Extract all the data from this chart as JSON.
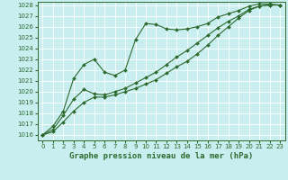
{
  "title": "Graphe pression niveau de la mer (hPa)",
  "bg_color": "#c8eef0",
  "grid_color": "#ffffff",
  "line_color": "#2d6a2d",
  "xlim": [
    -0.5,
    23.5
  ],
  "ylim": [
    1015.5,
    1028.3
  ],
  "yticks": [
    1016,
    1017,
    1018,
    1019,
    1020,
    1021,
    1022,
    1023,
    1024,
    1025,
    1026,
    1027,
    1028
  ],
  "xticks": [
    0,
    1,
    2,
    3,
    4,
    5,
    6,
    7,
    8,
    9,
    10,
    11,
    12,
    13,
    14,
    15,
    16,
    17,
    18,
    19,
    20,
    21,
    22,
    23
  ],
  "line1_x": [
    0,
    1,
    2,
    3,
    4,
    5,
    6,
    7,
    8,
    9,
    10,
    11,
    12,
    13,
    14,
    15,
    16,
    17,
    18,
    19,
    20,
    21,
    22,
    23
  ],
  "line1_y": [
    1016.0,
    1016.8,
    1018.2,
    1021.2,
    1022.5,
    1023.0,
    1021.8,
    1021.5,
    1022.0,
    1024.8,
    1026.3,
    1026.2,
    1025.8,
    1025.7,
    1025.8,
    1026.0,
    1026.3,
    1026.9,
    1027.2,
    1027.5,
    1027.9,
    1028.1,
    1028.1,
    1028.0
  ],
  "line2_x": [
    0,
    1,
    2,
    3,
    4,
    5,
    6,
    7,
    8,
    9,
    10,
    11,
    12,
    13,
    14,
    15,
    16,
    17,
    18,
    19,
    20,
    21,
    22,
    23
  ],
  "line2_y": [
    1016.0,
    1016.5,
    1017.8,
    1019.3,
    1020.2,
    1019.8,
    1019.7,
    1020.0,
    1020.3,
    1020.8,
    1021.3,
    1021.8,
    1022.5,
    1023.2,
    1023.8,
    1024.5,
    1025.2,
    1025.9,
    1026.5,
    1027.0,
    1027.6,
    1027.9,
    1028.0,
    1028.0
  ],
  "line3_x": [
    0,
    1,
    2,
    3,
    4,
    5,
    6,
    7,
    8,
    9,
    10,
    11,
    12,
    13,
    14,
    15,
    16,
    17,
    18,
    19,
    20,
    21,
    22,
    23
  ],
  "line3_y": [
    1016.0,
    1016.3,
    1017.2,
    1018.2,
    1019.0,
    1019.5,
    1019.5,
    1019.7,
    1020.0,
    1020.3,
    1020.7,
    1021.1,
    1021.7,
    1022.3,
    1022.8,
    1023.5,
    1024.3,
    1025.2,
    1026.0,
    1026.8,
    1027.5,
    1027.9,
    1028.0,
    1028.0
  ],
  "marker": "D",
  "markersize": 2.0,
  "linewidth": 0.8,
  "title_fontsize": 6.5,
  "tick_fontsize": 5.0
}
